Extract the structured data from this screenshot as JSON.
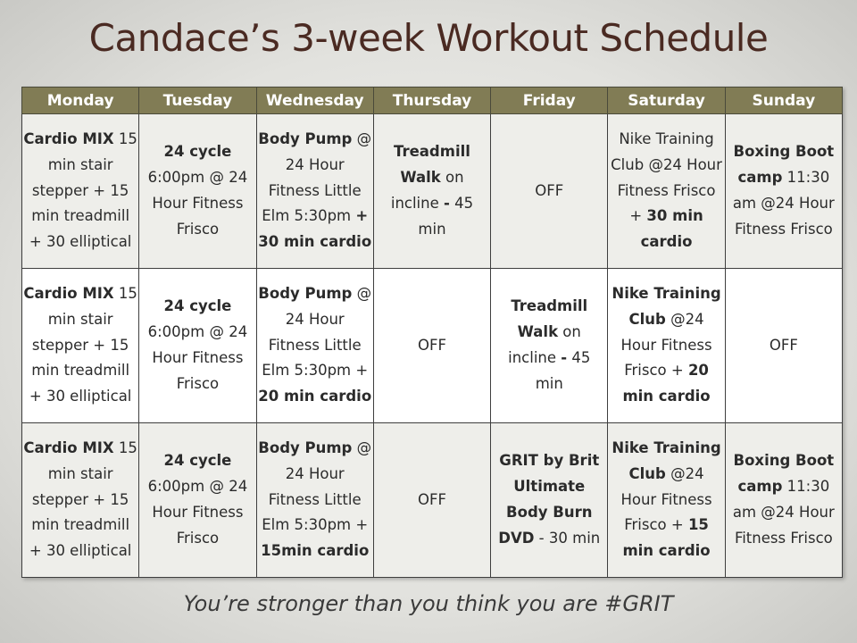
{
  "title": "Candace’s 3-week Workout Schedule",
  "colors": {
    "header_bg": "#817c55",
    "title": "#4a2a22",
    "row_shaded": "#eeeeea"
  },
  "days": [
    "Monday",
    "Tuesday",
    "Wednesday",
    "Thursday",
    "Friday",
    "Saturday",
    "Sunday"
  ],
  "weeks": [
    [
      [
        {
          "t": "Cardio MIX",
          "b": true
        },
        {
          "t": " 15 min stair stepper + 15 min treadmill + 30 elliptical",
          "b": false
        }
      ],
      [
        {
          "t": "24 cycle",
          "b": true
        },
        {
          "t": " 6:00pm @ 24 Hour Fitness Frisco",
          "b": false
        }
      ],
      [
        {
          "t": "Body Pump",
          "b": true
        },
        {
          "t": " @ 24 Hour Fitness Little Elm 5:30pm ",
          "b": false
        },
        {
          "t": "+ 30 min cardio",
          "b": true
        }
      ],
      [
        {
          "t": "Treadmill Walk",
          "b": true
        },
        {
          "t": " on incline ",
          "b": false
        },
        {
          "t": "-",
          "b": true
        },
        {
          "t": " 45 min",
          "b": false
        }
      ],
      [
        {
          "t": "OFF",
          "b": false
        }
      ],
      [
        {
          "t": "Nike Training Club @24 Hour Fitness Frisco + ",
          "b": false
        },
        {
          "t": "30 min cardio",
          "b": true
        }
      ],
      [
        {
          "t": "Boxing Boot camp",
          "b": true
        },
        {
          "t": " 11:30 am @24 Hour Fitness Frisco",
          "b": false
        }
      ]
    ],
    [
      [
        {
          "t": "Cardio MIX",
          "b": true
        },
        {
          "t": " 15 min stair stepper + 15 min treadmill + 30 elliptical",
          "b": false
        }
      ],
      [
        {
          "t": "24 cycle",
          "b": true
        },
        {
          "t": " 6:00pm @ 24 Hour Fitness Frisco",
          "b": false
        }
      ],
      [
        {
          "t": "Body Pump",
          "b": true
        },
        {
          "t": " @ 24 Hour Fitness Little Elm 5:30pm + ",
          "b": false
        },
        {
          "t": "20 min cardio",
          "b": true
        }
      ],
      [
        {
          "t": "OFF",
          "b": false
        }
      ],
      [
        {
          "t": "Treadmill Walk",
          "b": true
        },
        {
          "t": " on incline ",
          "b": false
        },
        {
          "t": "-",
          "b": true
        },
        {
          "t": " 45 min",
          "b": false
        }
      ],
      [
        {
          "t": "Nike Training Club",
          "b": true
        },
        {
          "t": " @24 Hour Fitness Frisco + ",
          "b": false
        },
        {
          "t": "20 min cardio",
          "b": true
        }
      ],
      [
        {
          "t": "OFF",
          "b": false
        }
      ]
    ],
    [
      [
        {
          "t": "Cardio MIX",
          "b": true
        },
        {
          "t": " 15 min stair stepper + 15 min treadmill + 30 elliptical",
          "b": false
        }
      ],
      [
        {
          "t": "24 cycle",
          "b": true
        },
        {
          "t": " 6:00pm @ 24 Hour Fitness Frisco",
          "b": false
        }
      ],
      [
        {
          "t": "Body Pump",
          "b": true
        },
        {
          "t": " @ 24 Hour Fitness Little Elm 5:30pm + ",
          "b": false
        },
        {
          "t": "15min cardio",
          "b": true
        }
      ],
      [
        {
          "t": "OFF",
          "b": false
        }
      ],
      [
        {
          "t": "GRIT by Brit Ultimate Body Burn DVD",
          "b": true
        },
        {
          "t": " - 30 min",
          "b": false
        }
      ],
      [
        {
          "t": "Nike Training Club",
          "b": true
        },
        {
          "t": " @24 Hour Fitness Frisco + ",
          "b": false
        },
        {
          "t": "15 min cardio",
          "b": true
        }
      ],
      [
        {
          "t": "Boxing Boot camp",
          "b": true
        },
        {
          "t": " 11:30 am @24 Hour Fitness Frisco",
          "b": false
        }
      ]
    ]
  ],
  "footer": "You’re stronger than you think you are #GRIT"
}
